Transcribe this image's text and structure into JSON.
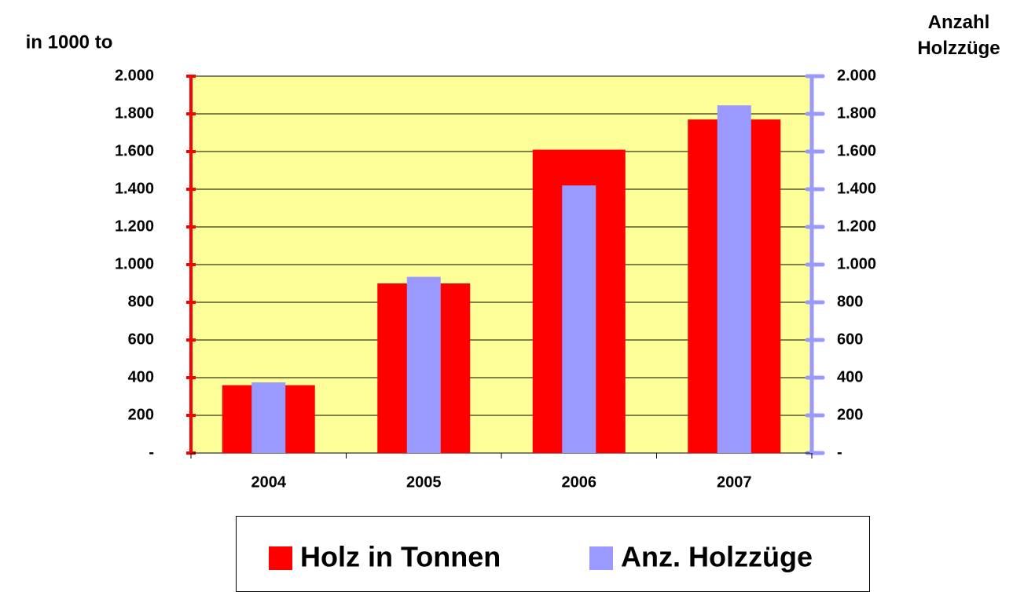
{
  "chart_data": {
    "type": "bar",
    "ylabel": "in 1000 to",
    "y2label": "Anzahl Holzzüge",
    "categories": [
      "2004",
      "2005",
      "2006",
      "2007"
    ],
    "series": [
      {
        "name": "Holz in Tonnen",
        "color": "#ff0000",
        "values": [
          360,
          900,
          1610,
          1770
        ]
      },
      {
        "name": "Anz. Holzzüge",
        "color": "#9999ff",
        "axis": "y2",
        "values": [
          375,
          935,
          1420,
          1845
        ]
      }
    ],
    "ylim": [
      0,
      2000
    ],
    "yticks": [
      {
        "value": 0,
        "label": "-"
      },
      200,
      400,
      600,
      800,
      {
        "value": 1000,
        "label": "1.000"
      },
      {
        "value": 1200,
        "label": "1.200"
      },
      {
        "value": 1400,
        "label": "1.400"
      },
      {
        "value": 1600,
        "label": "1.600"
      },
      {
        "value": 1800,
        "label": "1.800"
      },
      {
        "value": 2000,
        "label": "2.000"
      }
    ],
    "y2lim": [
      0,
      2000
    ],
    "y2ticks": [
      {
        "value": 0,
        "label": "-"
      },
      200,
      400,
      600,
      800,
      {
        "value": 1000,
        "label": "1.000"
      },
      {
        "value": 1200,
        "label": "1.200"
      },
      {
        "value": 1400,
        "label": "1.400"
      },
      {
        "value": 1600,
        "label": "1.600"
      },
      {
        "value": 1800,
        "label": "1.800"
      },
      {
        "value": 2000,
        "label": "2.000"
      }
    ],
    "grid": true,
    "plot_background": "#ffff99",
    "legend": "bottom"
  }
}
